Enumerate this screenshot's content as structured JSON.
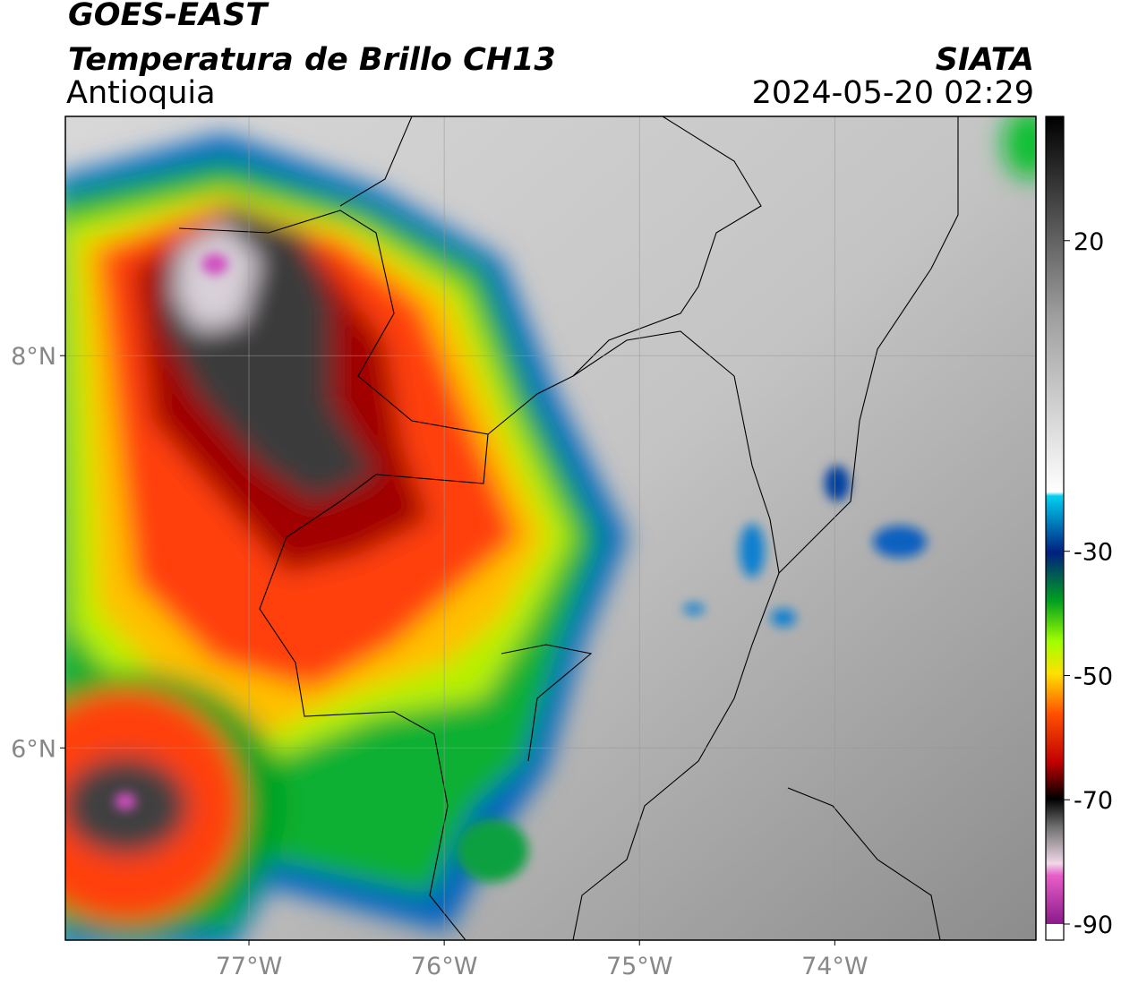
{
  "header": {
    "satellite": "GOES-EAST",
    "product": "Temperatura de Brillo CH13",
    "region": "Antioquia",
    "source": "SIATA",
    "datetime": "2024-05-20 02:29"
  },
  "map": {
    "lonlim": [
      -77.94,
      -72.97
    ],
    "latlim": [
      5.02,
      9.22
    ],
    "lon_ticks": [
      {
        "value": -77,
        "label": "77°W"
      },
      {
        "value": -76,
        "label": "76°W"
      },
      {
        "value": -75,
        "label": "75°W"
      },
      {
        "value": -74,
        "label": "74°W"
      }
    ],
    "lat_ticks": [
      {
        "value": 8,
        "label": "8°N"
      },
      {
        "value": 6,
        "label": "6°N"
      }
    ],
    "grid": true
  },
  "colorbar": {
    "lim": [
      -90,
      40
    ],
    "ticks": [
      20,
      -30,
      -50,
      -70,
      -90
    ]
  }
}
